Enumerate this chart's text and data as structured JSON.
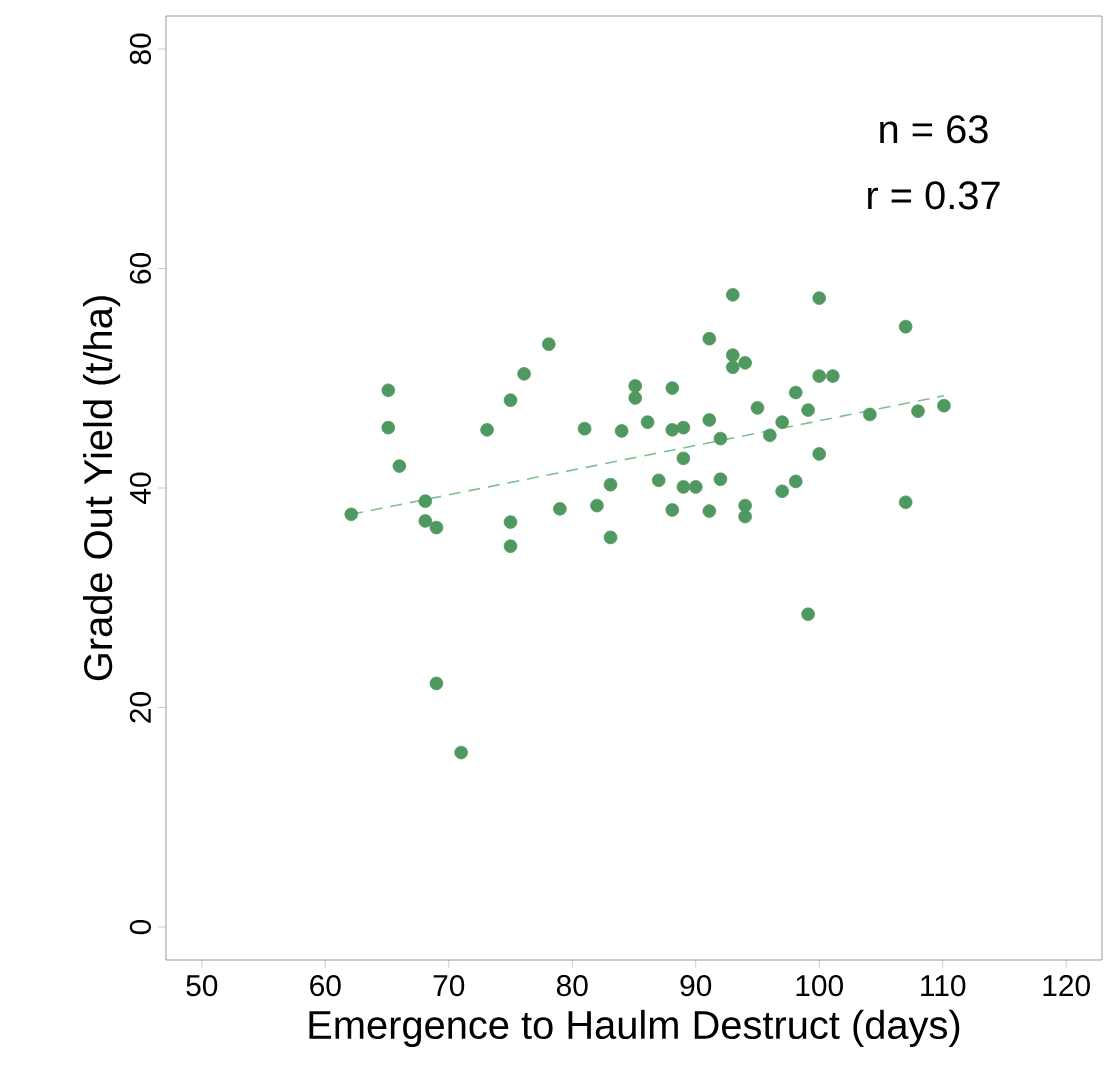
{
  "chart_data": {
    "type": "scatter",
    "xlabel": "Emergence to Haulm Destruct (days)",
    "ylabel": "Grade Out Yield (t/ha)",
    "annotations": [
      "n =  63",
      "r =  0.37"
    ],
    "xlim": [
      47.1,
      122.9
    ],
    "ylim": [
      -3,
      83
    ],
    "xticks": [
      50,
      60,
      70,
      80,
      90,
      100,
      110,
      120
    ],
    "yticks": [
      0,
      20,
      40,
      60,
      80
    ],
    "grid": false,
    "series": [
      {
        "color": "#4f9860",
        "marker": "circle",
        "x": [
          62.1,
          65.1,
          65.1,
          66.0,
          68.1,
          68.1,
          69.0,
          69.0,
          71.0,
          73.1,
          75.0,
          76.1,
          78.1,
          75.0,
          75.0,
          79.0,
          81.0,
          82.0,
          83.1,
          83.1,
          84.0,
          85.1,
          85.1,
          86.1,
          87.0,
          88.1,
          88.1,
          89.0,
          89.0,
          89.0,
          90.0,
          88.1,
          91.1,
          91.1,
          91.1,
          92.0,
          92.0,
          93.0,
          93.0,
          93.0,
          94.0,
          94.0,
          94.0,
          95.0,
          96.0,
          97.0,
          97.0,
          98.1,
          98.1,
          99.1,
          99.1,
          100.0,
          100.0,
          101.1,
          100.0,
          104.1,
          107.0,
          107.0,
          108.0,
          110.1
        ],
        "values": [
          37.6,
          48.9,
          45.5,
          42.0,
          38.8,
          37.0,
          36.4,
          22.2,
          15.9,
          45.3,
          48.0,
          50.4,
          53.1,
          36.9,
          34.7,
          38.1,
          45.4,
          38.4,
          40.3,
          35.5,
          45.2,
          49.3,
          48.2,
          46.0,
          40.7,
          49.1,
          45.3,
          45.5,
          42.7,
          40.1,
          40.1,
          38.0,
          53.6,
          46.2,
          37.9,
          44.5,
          40.8,
          57.6,
          52.1,
          51.0,
          51.4,
          38.4,
          37.4,
          47.3,
          44.8,
          46.0,
          39.7,
          48.7,
          40.6,
          47.1,
          28.5,
          57.3,
          50.2,
          50.2,
          43.1,
          46.7,
          54.7,
          38.7,
          47.0,
          47.5
        ]
      },
      {
        "type": "line",
        "line_style": "dashed",
        "marker": "none",
        "color": "#7fbf8c",
        "x": [
          62.1,
          110.1
        ],
        "values": [
          37.6,
          48.4
        ]
      }
    ]
  }
}
